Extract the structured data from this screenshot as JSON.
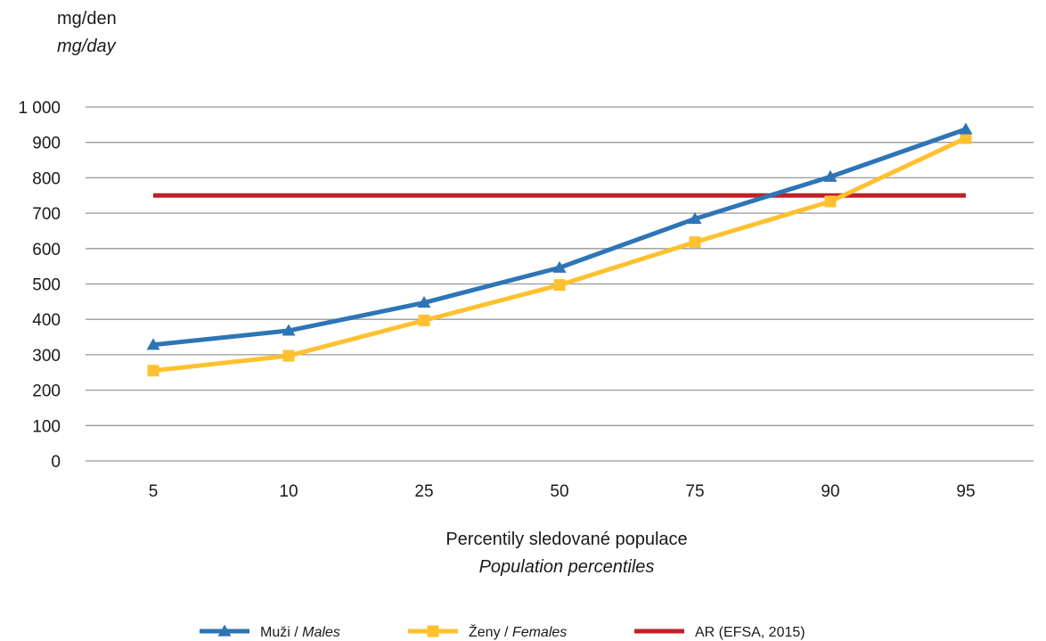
{
  "chart_data": {
    "type": "line",
    "ylabel": "mg/den",
    "ylabel_en": "mg/day",
    "xlabel": "Percentily sledované populace",
    "xlabel_en": "Population percentiles",
    "categories": [
      "5",
      "10",
      "25",
      "50",
      "75",
      "90",
      "95"
    ],
    "yticks": [
      "0",
      "100",
      "200",
      "300",
      "400",
      "500",
      "600",
      "700",
      "800",
      "900",
      "1 000"
    ],
    "ylim": [
      0,
      1000
    ],
    "grid": true,
    "legend_position": "bottom",
    "series": [
      {
        "name": "Muži",
        "name_en": "Males",
        "marker": "triangle",
        "color": "#2e75b6",
        "values": [
          328,
          368,
          447,
          546,
          684,
          803,
          937
        ]
      },
      {
        "name": "Ženy",
        "name_en": "Females",
        "marker": "square",
        "color": "#ffc12f",
        "values": [
          255,
          297,
          397,
          497,
          618,
          733,
          912
        ]
      },
      {
        "name": "AR (EFSA, 2015)",
        "name_en": "",
        "marker": "none",
        "color": "#c0202a",
        "values": [
          750,
          750,
          750,
          750,
          750,
          750,
          750
        ]
      }
    ]
  }
}
